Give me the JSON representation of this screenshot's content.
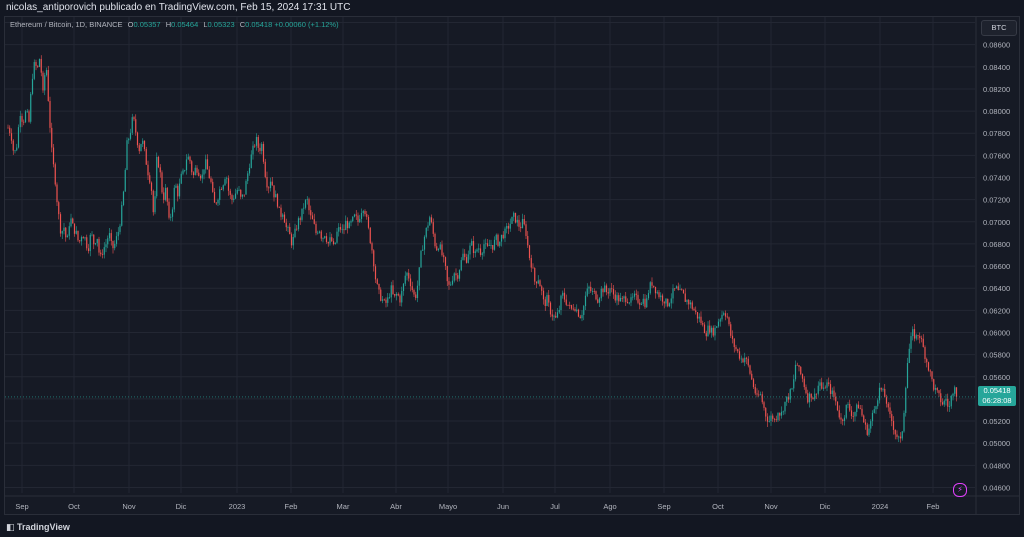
{
  "header": {
    "published": "nicolas_antiporovich publicado en TradingView.com, Feb 15, 2024 17:31 UTC"
  },
  "legend": {
    "symbol": "Ethereum / Bitcoin, 1D, BINANCE",
    "o_label": "O",
    "o": "0.05357",
    "h_label": "H",
    "h": "0.05464",
    "l_label": "L",
    "l": "0.05323",
    "c_label": "C",
    "c": "0.05418",
    "change": "+0.00060 (+1.12%)"
  },
  "currency": "BTC",
  "price_badge": {
    "price": "0.05418",
    "countdown": "06:28:08"
  },
  "footer": {
    "brand": "TradingView"
  },
  "colors": {
    "up": "#26a69a",
    "down": "#ef5350",
    "grid": "#232733",
    "axis_text": "#b2b5be"
  },
  "chart_data": {
    "type": "candlestick",
    "y_ticks": [
      "0.04600",
      "0.04800",
      "0.05000",
      "0.05200",
      "0.05400",
      "0.05600",
      "0.05800",
      "0.06000",
      "0.06200",
      "0.06400",
      "0.06600",
      "0.06800",
      "0.07000",
      "0.07200",
      "0.07400",
      "0.07600",
      "0.07800",
      "0.08000",
      "0.08200",
      "0.08400",
      "0.08600",
      "0.08800"
    ],
    "ylim": [
      0.0455,
      0.0885
    ],
    "x_ticks": [
      "Sep",
      "Oct",
      "Nov",
      "Dic",
      "2023",
      "Feb",
      "Mar",
      "Abr",
      "Mayo",
      "Jun",
      "Jul",
      "Ago",
      "Sep",
      "Oct",
      "Nov",
      "Dic",
      "2024",
      "Feb"
    ],
    "last_price": 0.05418,
    "path": [
      [
        0,
        0.0785
      ],
      [
        3,
        0.078
      ],
      [
        6,
        0.076
      ],
      [
        9,
        0.077
      ],
      [
        12,
        0.08
      ],
      [
        15,
        0.079
      ],
      [
        18,
        0.08
      ],
      [
        21,
        0.079
      ],
      [
        24,
        0.083
      ],
      [
        27,
        0.0845
      ],
      [
        29,
        0.0835
      ],
      [
        32,
        0.085
      ],
      [
        35,
        0.0815
      ],
      [
        38,
        0.0845
      ],
      [
        41,
        0.08
      ],
      [
        44,
        0.076
      ],
      [
        47,
        0.074
      ],
      [
        50,
        0.071
      ],
      [
        53,
        0.069
      ],
      [
        56,
        0.0695
      ],
      [
        59,
        0.068
      ],
      [
        62,
        0.0705
      ],
      [
        65,
        0.0695
      ],
      [
        68,
        0.069
      ],
      [
        71,
        0.068
      ],
      [
        74,
        0.069
      ],
      [
        77,
        0.0685
      ],
      [
        80,
        0.0675
      ],
      [
        83,
        0.069
      ],
      [
        86,
        0.068
      ],
      [
        89,
        0.0688
      ],
      [
        92,
        0.0665
      ],
      [
        95,
        0.0675
      ],
      [
        98,
        0.068
      ],
      [
        101,
        0.069
      ],
      [
        104,
        0.0675
      ],
      [
        107,
        0.068
      ],
      [
        110,
        0.069
      ],
      [
        113,
        0.0705
      ],
      [
        116,
        0.073
      ],
      [
        119,
        0.077
      ],
      [
        122,
        0.078
      ],
      [
        125,
        0.0795
      ],
      [
        128,
        0.078
      ],
      [
        131,
        0.0765
      ],
      [
        134,
        0.0775
      ],
      [
        137,
        0.076
      ],
      [
        140,
        0.0745
      ],
      [
        143,
        0.0735
      ],
      [
        146,
        0.07
      ],
      [
        149,
        0.076
      ],
      [
        152,
        0.0745
      ],
      [
        155,
        0.072
      ],
      [
        158,
        0.073
      ],
      [
        161,
        0.07
      ],
      [
        164,
        0.071
      ],
      [
        167,
        0.0735
      ],
      [
        170,
        0.0725
      ],
      [
        173,
        0.074
      ],
      [
        176,
        0.0745
      ],
      [
        179,
        0.076
      ],
      [
        182,
        0.0755
      ],
      [
        185,
        0.074
      ],
      [
        188,
        0.075
      ],
      [
        191,
        0.0745
      ],
      [
        194,
        0.074
      ],
      [
        197,
        0.0755
      ],
      [
        200,
        0.0745
      ],
      [
        203,
        0.0735
      ],
      [
        206,
        0.0715
      ],
      [
        209,
        0.072
      ],
      [
        212,
        0.073
      ],
      [
        215,
        0.0735
      ],
      [
        218,
        0.0745
      ],
      [
        221,
        0.0725
      ],
      [
        224,
        0.072
      ],
      [
        227,
        0.0725
      ],
      [
        230,
        0.073
      ],
      [
        233,
        0.072
      ],
      [
        236,
        0.0725
      ],
      [
        239,
        0.074
      ],
      [
        242,
        0.0755
      ],
      [
        245,
        0.0765
      ],
      [
        248,
        0.0775
      ],
      [
        251,
        0.0765
      ],
      [
        254,
        0.077
      ],
      [
        257,
        0.0745
      ],
      [
        260,
        0.073
      ],
      [
        263,
        0.074
      ],
      [
        266,
        0.0725
      ],
      [
        269,
        0.072
      ],
      [
        272,
        0.0705
      ],
      [
        275,
        0.071
      ],
      [
        278,
        0.0695
      ],
      [
        281,
        0.069
      ],
      [
        284,
        0.068
      ],
      [
        287,
        0.069
      ],
      [
        290,
        0.07
      ],
      [
        293,
        0.0705
      ],
      [
        296,
        0.0715
      ],
      [
        299,
        0.072
      ],
      [
        302,
        0.0705
      ],
      [
        305,
        0.07
      ],
      [
        308,
        0.069
      ],
      [
        311,
        0.0695
      ],
      [
        314,
        0.0685
      ],
      [
        317,
        0.069
      ],
      [
        320,
        0.068
      ],
      [
        323,
        0.0685
      ],
      [
        326,
        0.0675
      ],
      [
        329,
        0.069
      ],
      [
        332,
        0.0695
      ],
      [
        335,
        0.069
      ],
      [
        338,
        0.07
      ],
      [
        341,
        0.0695
      ],
      [
        344,
        0.07
      ],
      [
        347,
        0.0705
      ],
      [
        350,
        0.07
      ],
      [
        353,
        0.071
      ],
      [
        356,
        0.0715
      ],
      [
        359,
        0.07
      ],
      [
        362,
        0.0685
      ],
      [
        365,
        0.067
      ],
      [
        368,
        0.0645
      ],
      [
        371,
        0.0635
      ],
      [
        374,
        0.063
      ],
      [
        377,
        0.0625
      ],
      [
        380,
        0.063
      ],
      [
        383,
        0.064
      ],
      [
        386,
        0.063
      ],
      [
        389,
        0.0635
      ],
      [
        392,
        0.063
      ],
      [
        395,
        0.064
      ],
      [
        398,
        0.0655
      ],
      [
        401,
        0.065
      ],
      [
        404,
        0.064
      ],
      [
        407,
        0.063
      ],
      [
        410,
        0.0645
      ],
      [
        413,
        0.067
      ],
      [
        416,
        0.0685
      ],
      [
        419,
        0.0695
      ],
      [
        422,
        0.0705
      ],
      [
        425,
        0.069
      ],
      [
        428,
        0.0675
      ],
      [
        431,
        0.068
      ],
      [
        434,
        0.067
      ],
      [
        437,
        0.066
      ],
      [
        440,
        0.064
      ],
      [
        443,
        0.0645
      ],
      [
        446,
        0.0655
      ],
      [
        449,
        0.065
      ],
      [
        452,
        0.066
      ],
      [
        455,
        0.067
      ],
      [
        458,
        0.0665
      ],
      [
        461,
        0.0675
      ],
      [
        464,
        0.068
      ],
      [
        467,
        0.067
      ],
      [
        470,
        0.0678
      ],
      [
        473,
        0.0672
      ],
      [
        476,
        0.068
      ],
      [
        479,
        0.0675
      ],
      [
        482,
        0.068
      ],
      [
        485,
        0.0678
      ],
      [
        488,
        0.0685
      ],
      [
        491,
        0.068
      ],
      [
        494,
        0.0688
      ],
      [
        497,
        0.069
      ],
      [
        500,
        0.0695
      ],
      [
        503,
        0.07
      ],
      [
        506,
        0.0705
      ],
      [
        509,
        0.07
      ],
      [
        512,
        0.0695
      ],
      [
        515,
        0.07
      ],
      [
        518,
        0.069
      ],
      [
        521,
        0.067
      ],
      [
        524,
        0.066
      ],
      [
        527,
        0.0645
      ],
      [
        530,
        0.065
      ],
      [
        533,
        0.064
      ],
      [
        536,
        0.0625
      ],
      [
        539,
        0.063
      ],
      [
        542,
        0.062
      ],
      [
        545,
        0.0615
      ],
      [
        548,
        0.0612
      ],
      [
        551,
        0.062
      ],
      [
        554,
        0.0635
      ],
      [
        557,
        0.063
      ],
      [
        560,
        0.0625
      ],
      [
        563,
        0.062
      ],
      [
        566,
        0.0625
      ],
      [
        569,
        0.062
      ],
      [
        572,
        0.0615
      ],
      [
        575,
        0.062
      ],
      [
        578,
        0.0635
      ],
      [
        581,
        0.064
      ],
      [
        584,
        0.0636
      ],
      [
        587,
        0.0635
      ],
      [
        590,
        0.063
      ],
      [
        593,
        0.0638
      ],
      [
        596,
        0.064
      ],
      [
        599,
        0.0636
      ],
      [
        602,
        0.064
      ],
      [
        605,
        0.0635
      ],
      [
        608,
        0.0632
      ],
      [
        611,
        0.063
      ],
      [
        614,
        0.0628
      ],
      [
        617,
        0.0632
      ],
      [
        620,
        0.063
      ],
      [
        623,
        0.0628
      ],
      [
        626,
        0.0632
      ],
      [
        629,
        0.063
      ],
      [
        632,
        0.0628
      ],
      [
        635,
        0.063
      ],
      [
        638,
        0.0625
      ],
      [
        641,
        0.064
      ],
      [
        644,
        0.0645
      ],
      [
        647,
        0.064
      ],
      [
        650,
        0.0635
      ],
      [
        653,
        0.0632
      ],
      [
        656,
        0.063
      ],
      [
        659,
        0.0625
      ],
      [
        662,
        0.063
      ],
      [
        665,
        0.0636
      ],
      [
        668,
        0.064
      ],
      [
        671,
        0.0635
      ],
      [
        674,
        0.0636
      ],
      [
        677,
        0.063
      ],
      [
        680,
        0.0628
      ],
      [
        683,
        0.0625
      ],
      [
        686,
        0.062
      ],
      [
        689,
        0.0615
      ],
      [
        692,
        0.0612
      ],
      [
        695,
        0.0605
      ],
      [
        698,
        0.06
      ],
      [
        701,
        0.0605
      ],
      [
        704,
        0.06
      ],
      [
        707,
        0.0603
      ],
      [
        710,
        0.061
      ],
      [
        713,
        0.0615
      ],
      [
        716,
        0.062
      ],
      [
        719,
        0.0615
      ],
      [
        722,
        0.06
      ],
      [
        725,
        0.059
      ],
      [
        728,
        0.0585
      ],
      [
        731,
        0.058
      ],
      [
        734,
        0.0575
      ],
      [
        737,
        0.0578
      ],
      [
        740,
        0.057
      ],
      [
        743,
        0.056
      ],
      [
        746,
        0.055
      ],
      [
        749,
        0.054
      ],
      [
        752,
        0.0545
      ],
      [
        755,
        0.0535
      ],
      [
        758,
        0.0525
      ],
      [
        761,
        0.052
      ],
      [
        764,
        0.0525
      ],
      [
        767,
        0.052
      ],
      [
        770,
        0.053
      ],
      [
        773,
        0.0525
      ],
      [
        776,
        0.0535
      ],
      [
        779,
        0.054
      ],
      [
        782,
        0.0545
      ],
      [
        785,
        0.055
      ],
      [
        788,
        0.0575
      ],
      [
        791,
        0.0565
      ],
      [
        794,
        0.056
      ],
      [
        797,
        0.055
      ],
      [
        800,
        0.054
      ],
      [
        803,
        0.0545
      ],
      [
        806,
        0.054
      ],
      [
        809,
        0.055
      ],
      [
        812,
        0.0555
      ],
      [
        815,
        0.0545
      ],
      [
        818,
        0.0555
      ],
      [
        821,
        0.055
      ],
      [
        824,
        0.0545
      ],
      [
        827,
        0.054
      ],
      [
        830,
        0.053
      ],
      [
        833,
        0.052
      ],
      [
        836,
        0.0525
      ],
      [
        839,
        0.0535
      ],
      [
        842,
        0.053
      ],
      [
        845,
        0.0525
      ],
      [
        848,
        0.053
      ],
      [
        851,
        0.0535
      ],
      [
        854,
        0.0525
      ],
      [
        857,
        0.0515
      ],
      [
        860,
        0.051
      ],
      [
        863,
        0.052
      ],
      [
        866,
        0.053
      ],
      [
        869,
        0.054
      ],
      [
        872,
        0.055
      ],
      [
        875,
        0.0545
      ],
      [
        878,
        0.054
      ],
      [
        881,
        0.0525
      ],
      [
        884,
        0.052
      ],
      [
        887,
        0.051
      ],
      [
        890,
        0.0505
      ],
      [
        893,
        0.05
      ],
      [
        896,
        0.053
      ],
      [
        899,
        0.057
      ],
      [
        902,
        0.059
      ],
      [
        905,
        0.06
      ],
      [
        908,
        0.0595
      ],
      [
        911,
        0.06
      ],
      [
        914,
        0.059
      ],
      [
        917,
        0.058
      ],
      [
        920,
        0.057
      ],
      [
        923,
        0.056
      ],
      [
        926,
        0.055
      ],
      [
        929,
        0.0545
      ],
      [
        932,
        0.054
      ],
      [
        935,
        0.0535
      ],
      [
        938,
        0.054
      ],
      [
        941,
        0.053
      ],
      [
        944,
        0.0545
      ],
      [
        947,
        0.0555
      ],
      [
        950,
        0.0535
      ],
      [
        953,
        0.0525
      ],
      [
        956,
        0.0535
      ],
      [
        959,
        0.0542
      ]
    ]
  }
}
